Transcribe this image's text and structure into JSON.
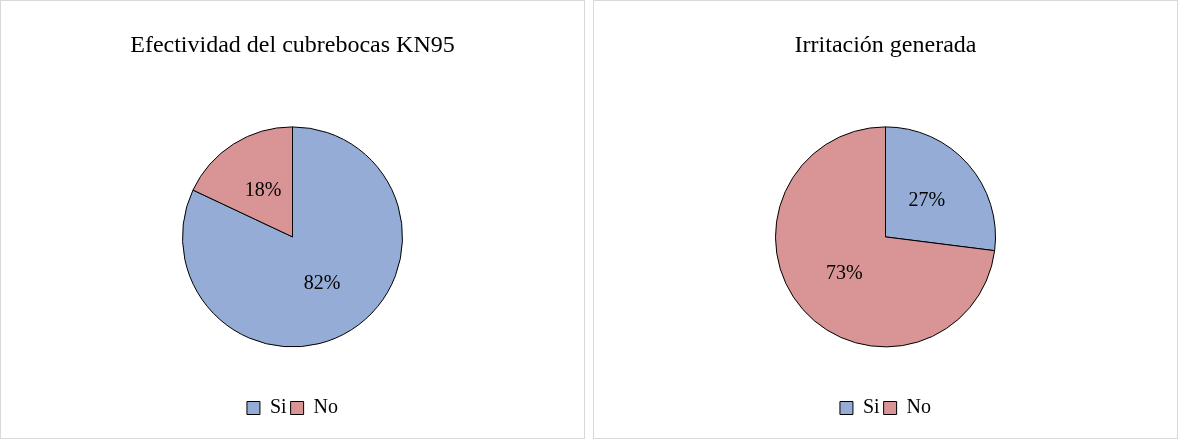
{
  "chart_data": [
    {
      "type": "pie",
      "title": "Efectividad del cubrebocas KN95",
      "categories": [
        "Si",
        "No"
      ],
      "values": [
        82,
        18
      ],
      "colors": [
        "#94acd6",
        "#d99595"
      ],
      "value_labels": [
        "82%",
        "18%"
      ],
      "legend": "bottom"
    },
    {
      "type": "pie",
      "title": "Irritación generada",
      "categories": [
        "Si",
        "No"
      ],
      "values": [
        27,
        73
      ],
      "colors": [
        "#94acd6",
        "#d99595"
      ],
      "value_labels": [
        "27%",
        "73%"
      ],
      "legend": "bottom"
    }
  ]
}
